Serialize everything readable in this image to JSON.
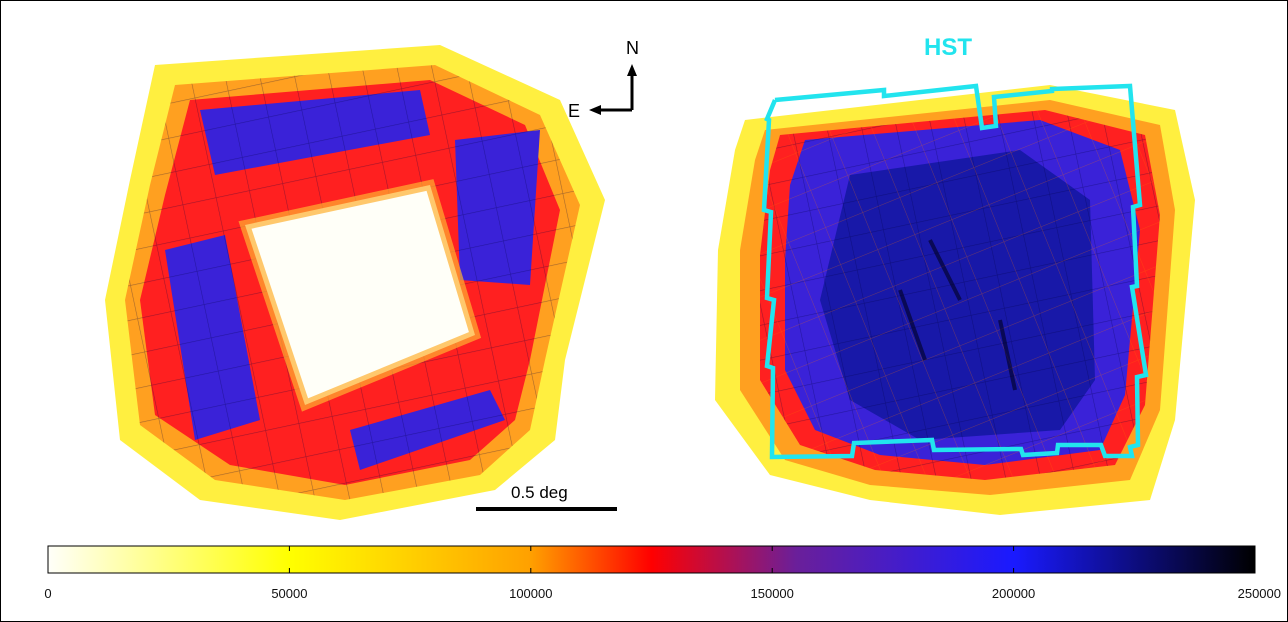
{
  "labels": {
    "north": "N",
    "east": "E",
    "hst": "HST",
    "scale_bar": "0.5 deg"
  },
  "colorbar": {
    "min": 0,
    "max": 250000,
    "tick_labels": [
      "0",
      "50000",
      "100000",
      "150000",
      "200000",
      "250000"
    ],
    "colors": {
      "stop_0": "#fffffa",
      "stop_1": "#ffff00",
      "stop_2": "#ffa000",
      "stop_3": "#ff0000",
      "stop_4": "#6a1f9a",
      "stop_5": "#1a1aff",
      "stop_6": "#000000"
    }
  },
  "overlay_color": "#22e4ee"
}
